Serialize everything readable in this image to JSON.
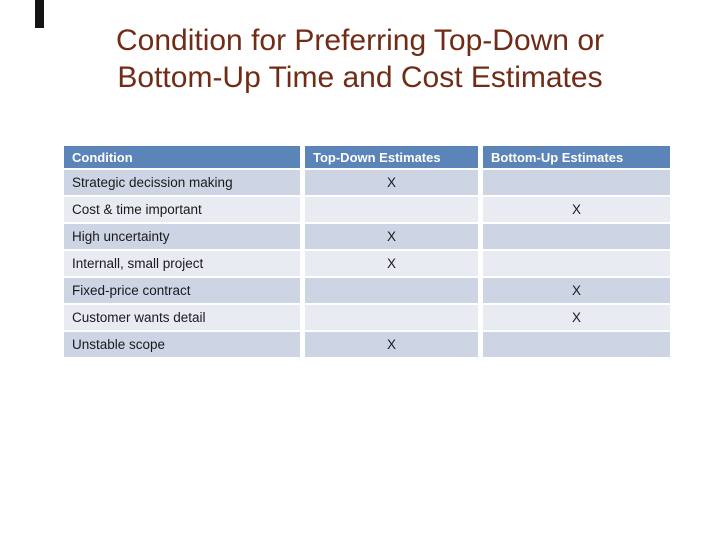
{
  "slide": {
    "title_line1": "Condition for Preferring Top-Down or",
    "title_line2": "Bottom-Up Time and Cost Estimates",
    "title_color": "#702c16"
  },
  "decoration": {
    "corner_bar_color": "#141414"
  },
  "table": {
    "columns": [
      "Condition",
      "Top-Down Estimates",
      "Bottom-Up Estimates"
    ],
    "rows": [
      {
        "condition": "Strategic decission making",
        "top_down": "X",
        "bottom_up": ""
      },
      {
        "condition": "Cost & time important",
        "top_down": "",
        "bottom_up": "X"
      },
      {
        "condition": "High uncertainty",
        "top_down": "X",
        "bottom_up": ""
      },
      {
        "condition": "Internall, small project",
        "top_down": "X",
        "bottom_up": ""
      },
      {
        "condition": "Fixed-price contract",
        "top_down": "",
        "bottom_up": "X"
      },
      {
        "condition": "Customer wants detail",
        "top_down": "",
        "bottom_up": "X"
      },
      {
        "condition": "Unstable scope",
        "top_down": "X",
        "bottom_up": ""
      }
    ],
    "colors": {
      "header_bg": "#5b84b9",
      "header_text": "#ffffff",
      "row_odd_bg": "#cdd4e4",
      "row_even_bg": "#e9ebf3",
      "text": "#1a1a1a",
      "divider": "#ffffff"
    }
  }
}
